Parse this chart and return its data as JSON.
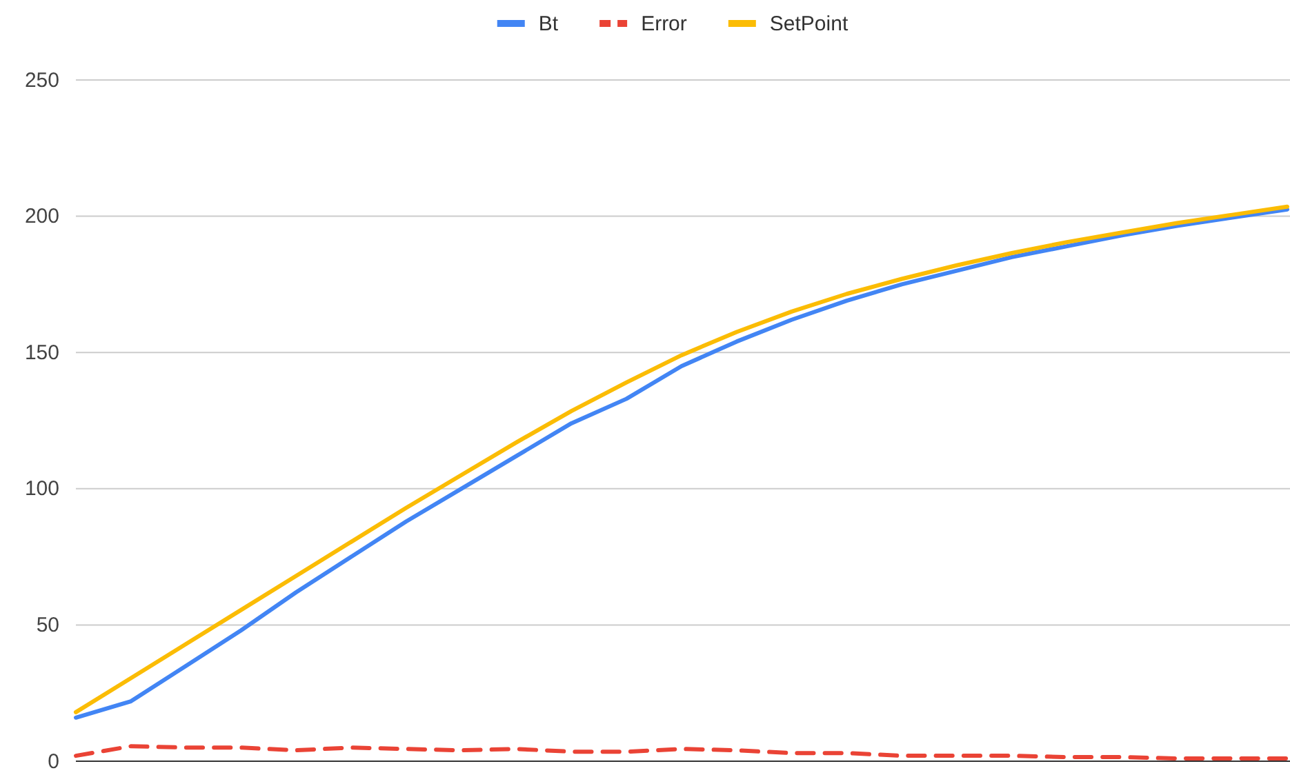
{
  "chart_data": {
    "type": "line",
    "categories": [
      null,
      null,
      null,
      null,
      null,
      null,
      null,
      null,
      null,
      null,
      null,
      null,
      null,
      null,
      null,
      null,
      null,
      null,
      null,
      null,
      null,
      null,
      null
    ],
    "ylim": [
      0,
      250
    ],
    "yticks": [
      0,
      50,
      100,
      150,
      200,
      250
    ],
    "grid": "y",
    "legend": "top",
    "tick_labels": "y",
    "series": [
      {
        "name": "Bt",
        "color": "#4285f4",
        "line_style": "solid",
        "values": [
          16,
          22,
          35,
          48,
          62,
          75,
          88,
          100,
          112,
          124,
          133,
          145,
          154,
          162,
          169,
          175,
          180,
          185,
          189,
          193,
          196.5,
          199.5,
          202.5
        ]
      },
      {
        "name": "Error",
        "color": "#ea4335",
        "line_style": "dashed",
        "values": [
          2,
          5.5,
          5,
          5,
          4,
          5,
          4.5,
          4,
          4.5,
          3.5,
          3.5,
          4.5,
          4,
          3,
          3,
          2,
          2,
          2,
          1.5,
          1.5,
          1,
          1,
          1
        ]
      },
      {
        "name": "SetPoint",
        "color": "#fbbc04",
        "line_style": "solid",
        "values": [
          18,
          30.5,
          43,
          55.5,
          68,
          80.5,
          93,
          105,
          117,
          128.5,
          139,
          149,
          157.5,
          165,
          171.5,
          177,
          182,
          186.5,
          190.5,
          194,
          197.5,
          200.5,
          203.5
        ]
      }
    ]
  }
}
